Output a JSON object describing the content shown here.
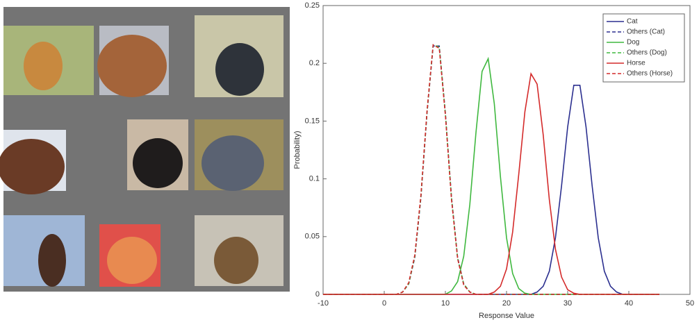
{
  "chart_data": {
    "type": "line",
    "xlabel": "Response Value",
    "ylabel": "Probability)",
    "x": [
      -10,
      -9,
      -8,
      -7,
      -6,
      -5,
      -4,
      -3,
      -2,
      -1,
      0,
      1,
      2,
      3,
      4,
      5,
      6,
      7,
      8,
      9,
      10,
      11,
      12,
      13,
      14,
      15,
      16,
      17,
      18,
      19,
      20,
      21,
      22,
      23,
      24,
      25,
      26,
      27,
      28,
      29,
      30,
      31,
      32,
      33,
      34,
      35,
      36,
      37,
      38,
      39,
      40,
      41,
      42,
      43,
      44,
      45
    ],
    "series": [
      {
        "name": "Cat",
        "color": "#2b2f8f",
        "linestyle": "solid",
        "values": [
          0,
          0,
          0,
          0,
          0,
          0,
          0,
          0,
          0,
          0,
          0,
          0,
          0,
          0,
          0,
          0,
          0,
          0,
          0,
          0,
          0,
          0,
          0,
          0,
          0,
          0,
          0,
          0,
          0,
          0,
          0,
          0,
          0,
          0,
          0,
          0.002,
          0.007,
          0.02,
          0.049,
          0.094,
          0.145,
          0.181,
          0.181,
          0.145,
          0.094,
          0.049,
          0.02,
          0.007,
          0.002,
          0,
          0,
          0,
          0,
          0,
          0,
          0
        ]
      },
      {
        "name": "Others (Cat)",
        "color": "#2b2f8f",
        "linestyle": "dashed",
        "values": [
          0,
          0,
          0,
          0,
          0,
          0,
          0,
          0,
          0,
          0,
          0,
          0,
          0,
          0.002,
          0.009,
          0.032,
          0.084,
          0.157,
          0.215,
          0.215,
          0.157,
          0.084,
          0.032,
          0.009,
          0.002,
          0,
          0,
          0,
          0,
          0,
          0,
          0,
          0,
          0,
          0,
          0,
          0,
          0,
          0,
          0,
          0,
          0,
          0,
          0,
          0,
          0,
          0,
          0,
          0,
          0,
          0,
          0,
          0,
          0,
          0,
          0
        ]
      },
      {
        "name": "Dog",
        "color": "#3fb83f",
        "linestyle": "solid",
        "values": [
          0,
          0,
          0,
          0,
          0,
          0,
          0,
          0,
          0,
          0,
          0,
          0,
          0,
          0,
          0,
          0,
          0,
          0,
          0,
          0,
          0,
          0.003,
          0.011,
          0.033,
          0.078,
          0.14,
          0.193,
          0.204,
          0.165,
          0.102,
          0.049,
          0.018,
          0.005,
          0.001,
          0,
          0,
          0,
          0,
          0,
          0,
          0,
          0,
          0,
          0,
          0,
          0,
          0,
          0,
          0,
          0,
          0,
          0,
          0,
          0,
          0,
          0
        ]
      },
      {
        "name": "Others (Dog)",
        "color": "#3fb83f",
        "linestyle": "dashed",
        "values": [
          0,
          0,
          0,
          0,
          0,
          0,
          0,
          0,
          0,
          0,
          0,
          0,
          0,
          0.002,
          0.009,
          0.033,
          0.085,
          0.158,
          0.216,
          0.214,
          0.156,
          0.083,
          0.031,
          0.009,
          0.002,
          0,
          0,
          0,
          0,
          0,
          0,
          0,
          0,
          0,
          0,
          0,
          0,
          0,
          0,
          0,
          0,
          0,
          0,
          0,
          0,
          0,
          0,
          0,
          0,
          0,
          0,
          0,
          0,
          0,
          0,
          0
        ]
      },
      {
        "name": "Horse",
        "color": "#d42a2a",
        "linestyle": "solid",
        "values": [
          0,
          0,
          0,
          0,
          0,
          0,
          0,
          0,
          0,
          0,
          0,
          0,
          0,
          0,
          0,
          0,
          0,
          0,
          0,
          0,
          0,
          0,
          0,
          0,
          0,
          0,
          0,
          0,
          0.002,
          0.007,
          0.022,
          0.054,
          0.104,
          0.158,
          0.191,
          0.182,
          0.138,
          0.082,
          0.039,
          0.015,
          0.004,
          0.001,
          0,
          0,
          0,
          0,
          0,
          0,
          0,
          0,
          0,
          0,
          0,
          0,
          0,
          0
        ]
      },
      {
        "name": "Others (Horse)",
        "color": "#d42a2a",
        "linestyle": "dashed",
        "values": [
          0,
          0,
          0,
          0,
          0,
          0,
          0,
          0,
          0,
          0,
          0,
          0,
          0,
          0.002,
          0.01,
          0.034,
          0.086,
          0.159,
          0.216,
          0.213,
          0.155,
          0.082,
          0.031,
          0.008,
          0.002,
          0,
          0,
          0,
          0,
          0,
          0,
          0,
          0,
          0,
          0,
          0,
          0,
          0,
          0,
          0,
          0,
          0,
          0,
          0,
          0,
          0,
          0,
          0,
          0,
          0,
          0,
          0,
          0,
          0,
          0,
          0
        ]
      }
    ],
    "xlim": [
      -10,
      50
    ],
    "xticks": [
      -10,
      0,
      10,
      20,
      30,
      40,
      50
    ],
    "ylim": [
      0,
      0.25
    ],
    "yticks": [
      0,
      0.05,
      0.1,
      0.15,
      0.2,
      0.25
    ],
    "grid": false,
    "legend": "upper right"
  }
}
